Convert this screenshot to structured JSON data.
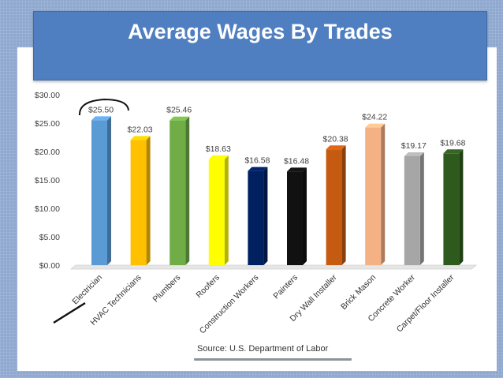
{
  "title": "Average Wages By Trades",
  "source": "Source: U.S. Department of Labor",
  "colors": {
    "background": "#8fa8cf",
    "title_bar": "#4f7fc0",
    "bars": [
      "#5b9bd5",
      "#ffc000",
      "#70ad47",
      "#ffff00",
      "#002060",
      "#111111",
      "#c55a11",
      "#f4b183",
      "#a6a6a6",
      "#2e5a1e"
    ]
  },
  "chart_data": {
    "type": "bar",
    "categories": [
      "Electrician",
      "HVAC Technicians",
      "Plumbers",
      "Roofers",
      "Construction Workers",
      "Painters",
      "Dry Wall Installer",
      "Brick Mason",
      "Concrete Worker",
      "Carpet/Floor Installer"
    ],
    "values": [
      25.5,
      22.03,
      25.46,
      18.63,
      16.58,
      16.48,
      20.38,
      24.22,
      19.17,
      19.68
    ],
    "value_labels": [
      "$25.50",
      "$22.03",
      "$25.46",
      "$18.63",
      "$16.58",
      "$16.48",
      "$20.38",
      "$24.22",
      "$19.17",
      "$19.68"
    ],
    "y_ticks": [
      "$0.00",
      "$5.00",
      "$10.00",
      "$15.00",
      "$20.00",
      "$25.00",
      "$30.00"
    ],
    "ylim": [
      0,
      30
    ],
    "grid": false,
    "legend": "none"
  }
}
